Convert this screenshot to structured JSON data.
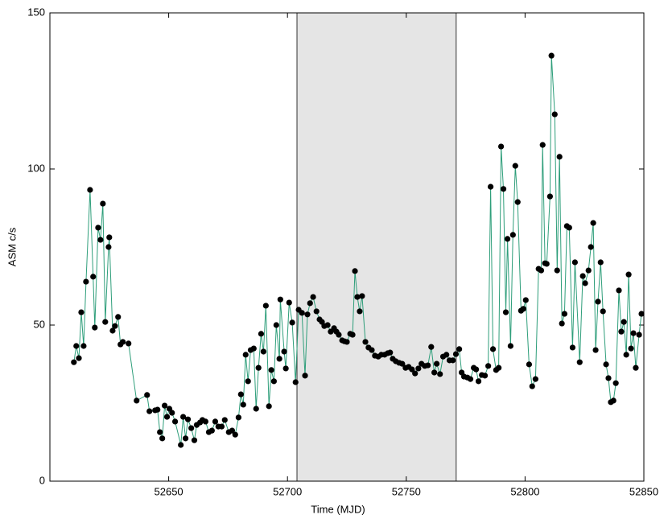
{
  "chart_data": {
    "type": "line",
    "xlabel": "Time (MJD)",
    "ylabel": "ASM c/s",
    "xlim": [
      52600,
      52850
    ],
    "ylim": [
      0,
      150
    ],
    "xticks": [
      52650,
      52700,
      52750,
      52800,
      52850
    ],
    "yticks": [
      0,
      50,
      100,
      150
    ],
    "span": [
      52704,
      52771
    ],
    "span_color": "#e5e5e5",
    "line_color": "#2e9e7a",
    "marker_color": "#000000",
    "x": [
      52610.1,
      52611.1,
      52612.2,
      52613.2,
      52614.2,
      52615.2,
      52616.9,
      52618.2,
      52618.9,
      52620.3,
      52621.3,
      52622.3,
      52623.3,
      52624.7,
      52625.0,
      52626.4,
      52627.4,
      52628.7,
      52629.7,
      52630.7,
      52633.1,
      52636.5,
      52640.9,
      52641.9,
      52644.3,
      52645.3,
      52646.3,
      52647.3,
      52648.3,
      52649.3,
      52650.3,
      52651.4,
      52652.7,
      52655.1,
      52656.1,
      52657.1,
      52658.1,
      52659.5,
      52660.8,
      52661.8,
      52663.2,
      52664.2,
      52665.5,
      52666.9,
      52668.2,
      52669.6,
      52670.9,
      52672.3,
      52673.6,
      52675.3,
      52676.7,
      52678.0,
      52679.4,
      52680.4,
      52681.4,
      52682.4,
      52683.4,
      52684.5,
      52685.8,
      52686.8,
      52687.8,
      52688.9,
      52689.9,
      52690.9,
      52692.2,
      52693.2,
      52694.3,
      52695.3,
      52696.6,
      52697.0,
      52698.6,
      52699.3,
      52700.7,
      52702.0,
      52703.4,
      52704.7,
      52706.1,
      52707.4,
      52708.4,
      52709.5,
      52710.8,
      52712.2,
      52713.5,
      52714.5,
      52715.5,
      52716.9,
      52718.2,
      52719.6,
      52720.6,
      52721.6,
      52723.0,
      52724.0,
      52725.0,
      52726.4,
      52727.4,
      52728.4,
      52729.4,
      52730.4,
      52731.4,
      52732.8,
      52734.1,
      52735.5,
      52736.8,
      52738.2,
      52739.5,
      52740.9,
      52742.2,
      52743.2,
      52744.3,
      52745.6,
      52747.0,
      52748.3,
      52749.7,
      52751.0,
      52752.4,
      52753.7,
      52755.1,
      52756.4,
      52757.8,
      52759.1,
      52760.5,
      52761.8,
      52762.8,
      52764.2,
      52765.5,
      52766.9,
      52768.2,
      52769.6,
      52770.9,
      52772.3,
      52773.3,
      52774.3,
      52775.7,
      52777.0,
      52778.4,
      52779.4,
      52780.4,
      52781.8,
      52783.1,
      52784.5,
      52785.5,
      52786.5,
      52787.8,
      52788.9,
      52789.9,
      52790.9,
      52791.9,
      52792.6,
      52793.9,
      52794.9,
      52795.9,
      52796.9,
      52798.3,
      52799.3,
      52800.3,
      52801.7,
      52803.0,
      52804.4,
      52805.7,
      52806.8,
      52807.4,
      52808.4,
      52809.1,
      52810.5,
      52811.1,
      52812.5,
      52813.5,
      52814.5,
      52815.5,
      52816.6,
      52817.6,
      52818.6,
      52820.0,
      52821.0,
      52823.0,
      52824.3,
      52825.3,
      52826.7,
      52827.7,
      52828.7,
      52829.7,
      52830.7,
      52831.8,
      52832.8,
      52834.1,
      52835.1,
      52836.1,
      52837.2,
      52838.2,
      52839.5,
      52840.5,
      52841.6,
      52842.6,
      52843.6,
      52844.6,
      52845.6,
      52846.6,
      52848.0,
      52849.0
    ],
    "values": [
      38.1,
      43.3,
      39.4,
      54.1,
      43.3,
      63.9,
      93.3,
      65.5,
      49.2,
      81.2,
      77.3,
      88.9,
      51.0,
      75.0,
      78.1,
      48.2,
      49.7,
      52.6,
      43.8,
      44.6,
      44.1,
      25.8,
      27.6,
      22.4,
      22.7,
      22.9,
      15.7,
      13.7,
      24.2,
      20.6,
      23.2,
      21.9,
      19.1,
      11.6,
      20.6,
      13.7,
      19.8,
      17.0,
      13.1,
      18.0,
      18.8,
      19.6,
      19.1,
      15.7,
      16.2,
      19.1,
      17.5,
      17.5,
      19.6,
      15.7,
      16.2,
      14.9,
      20.4,
      27.8,
      24.5,
      40.5,
      32.0,
      42.0,
      42.5,
      23.2,
      36.3,
      47.2,
      41.5,
      56.2,
      24.0,
      35.6,
      32.0,
      50.0,
      39.2,
      58.2,
      41.5,
      36.1,
      57.2,
      50.8,
      31.7,
      54.9,
      53.9,
      33.8,
      53.4,
      57.0,
      59.0,
      54.4,
      51.8,
      51.0,
      49.7,
      50.0,
      47.9,
      49.0,
      47.9,
      46.9,
      45.1,
      44.8,
      44.6,
      47.2,
      46.9,
      67.3,
      59.0,
      54.4,
      59.3,
      44.6,
      42.8,
      42.0,
      40.2,
      39.9,
      40.5,
      40.5,
      41.0,
      41.2,
      39.2,
      38.4,
      37.9,
      37.6,
      36.3,
      36.6,
      35.8,
      34.5,
      36.1,
      37.6,
      36.9,
      37.1,
      43.0,
      34.8,
      37.6,
      34.3,
      39.9,
      40.5,
      38.7,
      38.7,
      40.7,
      42.3,
      34.8,
      33.5,
      33.2,
      32.7,
      36.3,
      35.8,
      32.0,
      34.0,
      33.8,
      36.9,
      94.3,
      42.3,
      35.6,
      36.3,
      107.2,
      93.6,
      54.1,
      77.6,
      43.3,
      78.9,
      101.0,
      89.4,
      54.6,
      55.2,
      58.0,
      37.4,
      30.4,
      32.7,
      68.0,
      67.5,
      107.7,
      69.8,
      69.6,
      91.2,
      136.3,
      117.5,
      67.5,
      103.9,
      50.5,
      53.6,
      81.7,
      81.2,
      42.8,
      70.1,
      38.1,
      65.7,
      63.4,
      67.5,
      75.0,
      82.7,
      42.0,
      57.5,
      70.1,
      54.4,
      37.4,
      33.0,
      25.3,
      25.8,
      31.4,
      61.1,
      47.9,
      51.0,
      40.5,
      66.2,
      42.5,
      47.4,
      36.3,
      46.9,
      53.6
    ]
  }
}
